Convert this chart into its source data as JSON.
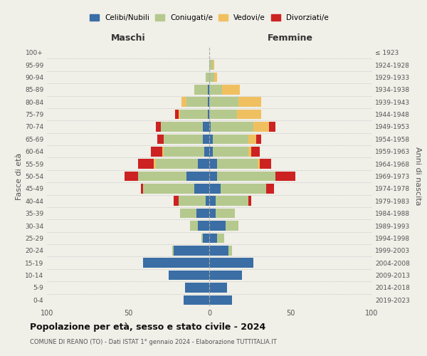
{
  "age_groups": [
    "0-4",
    "5-9",
    "10-14",
    "15-19",
    "20-24",
    "25-29",
    "30-34",
    "35-39",
    "40-44",
    "45-49",
    "50-54",
    "55-59",
    "60-64",
    "65-69",
    "70-74",
    "75-79",
    "80-84",
    "85-89",
    "90-94",
    "95-99",
    "100+"
  ],
  "birth_years": [
    "2019-2023",
    "2014-2018",
    "2009-2013",
    "2004-2008",
    "1999-2003",
    "1994-1998",
    "1989-1993",
    "1984-1988",
    "1979-1983",
    "1974-1978",
    "1969-1973",
    "1964-1968",
    "1959-1963",
    "1954-1958",
    "1949-1953",
    "1944-1948",
    "1939-1943",
    "1934-1938",
    "1929-1933",
    "1924-1928",
    "≤ 1923"
  ],
  "maschi": {
    "celibi": [
      16,
      15,
      25,
      41,
      22,
      4,
      7,
      8,
      2,
      9,
      14,
      7,
      3,
      4,
      4,
      1,
      1,
      1,
      0,
      0,
      0
    ],
    "coniugati": [
      0,
      0,
      0,
      0,
      1,
      1,
      5,
      10,
      17,
      32,
      30,
      26,
      25,
      24,
      26,
      17,
      13,
      8,
      2,
      0,
      0
    ],
    "vedovi": [
      0,
      0,
      0,
      0,
      0,
      0,
      0,
      0,
      0,
      0,
      0,
      1,
      1,
      0,
      0,
      1,
      3,
      0,
      0,
      0,
      0
    ],
    "divorziati": [
      0,
      0,
      0,
      0,
      0,
      0,
      0,
      0,
      3,
      1,
      8,
      10,
      7,
      4,
      3,
      2,
      0,
      0,
      0,
      0,
      0
    ]
  },
  "femmine": {
    "nubili": [
      14,
      11,
      20,
      27,
      12,
      5,
      10,
      4,
      4,
      7,
      5,
      5,
      2,
      2,
      1,
      0,
      0,
      0,
      0,
      0,
      0
    ],
    "coniugate": [
      0,
      0,
      0,
      0,
      2,
      4,
      8,
      12,
      20,
      28,
      36,
      25,
      22,
      22,
      26,
      17,
      18,
      8,
      3,
      2,
      0
    ],
    "vedove": [
      0,
      0,
      0,
      0,
      0,
      0,
      0,
      0,
      0,
      0,
      0,
      1,
      2,
      5,
      10,
      15,
      14,
      11,
      2,
      1,
      0
    ],
    "divorziate": [
      0,
      0,
      0,
      0,
      0,
      0,
      0,
      0,
      2,
      5,
      12,
      7,
      5,
      3,
      4,
      0,
      0,
      0,
      0,
      0,
      0
    ]
  },
  "colors": {
    "celibi": "#3a6ea5",
    "coniugati": "#b5c98e",
    "vedovi": "#f0c060",
    "divorziati": "#cc2222"
  },
  "xlim": 100,
  "title1": "Popolazione per età, sesso e stato civile - 2024",
  "title2": "COMUNE DI REANO (TO) - Dati ISTAT 1° gennaio 2024 - Elaborazione TUTTITALIA.IT",
  "xlabel_left": "Maschi",
  "xlabel_right": "Femmine",
  "ylabel_left": "Fasce di età",
  "ylabel_right": "Anni di nascita",
  "legend_labels": [
    "Celibi/Nubili",
    "Coniugati/e",
    "Vedovi/e",
    "Divorziati/e"
  ],
  "background_color": "#f0efe8"
}
